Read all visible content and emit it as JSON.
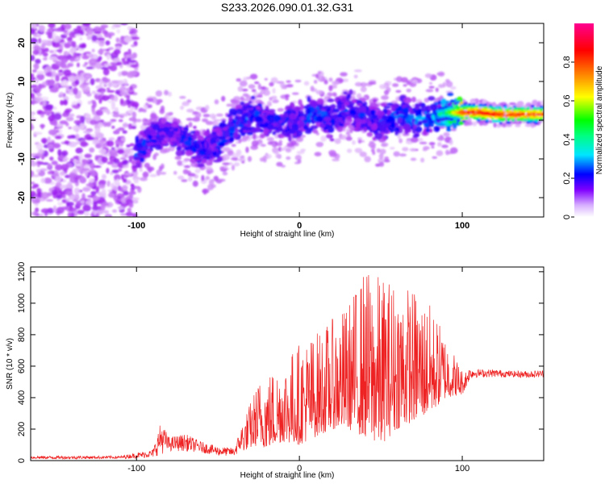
{
  "figure_title": "S233.2026.090.01.32.G31",
  "chart_data": [
    {
      "type": "heatmap",
      "title": "S233.2026.090.01.32.G31",
      "xlabel": "Height of straight line (km)",
      "ylabel": "Frequency (Hz)",
      "xlim": [
        -165,
        150
      ],
      "ylim": [
        -25,
        25
      ],
      "x_ticks": [
        -100,
        0,
        100
      ],
      "y_ticks": [
        -20,
        -10,
        0,
        10,
        20
      ],
      "colorbar": {
        "label": "Normalized spectral amplitude",
        "range": [
          0,
          1
        ],
        "ticks": [
          0,
          0.2,
          0.4,
          0.6,
          0.8
        ],
        "colormap": [
          "#ffffff",
          "#a020f0",
          "#0000ff",
          "#00e5ff",
          "#00ff00",
          "#ffff00",
          "#ff8000",
          "#ff0000",
          "#ff0080"
        ]
      },
      "ridge": {
        "x": [
          -100,
          -90,
          -80,
          -70,
          -60,
          -50,
          -40,
          -30,
          -20,
          -10,
          0,
          10,
          20,
          30,
          40,
          50,
          60,
          70,
          80,
          90,
          100,
          110,
          120,
          130,
          140,
          150
        ],
        "center_hz": [
          -8,
          -4,
          -3,
          -5,
          -8,
          -6,
          -1,
          1,
          0,
          -1,
          0,
          2,
          0,
          3,
          1,
          -1,
          1,
          0,
          1,
          2,
          2,
          2,
          1.5,
          1.5,
          1.5,
          1.5
        ],
        "peak_amplitude": [
          0.35,
          0.3,
          0.25,
          0.3,
          0.3,
          0.3,
          0.35,
          0.35,
          0.3,
          0.3,
          0.3,
          0.35,
          0.3,
          0.3,
          0.3,
          0.3,
          0.35,
          0.35,
          0.4,
          0.5,
          0.85,
          0.9,
          0.9,
          0.85,
          0.85,
          0.8
        ]
      },
      "noise_region_x": [
        -165,
        -100
      ]
    },
    {
      "type": "line",
      "xlabel": "Height of straight line (km)",
      "ylabel": "SNR (10 * v/v)",
      "xlim": [
        -165,
        150
      ],
      "ylim": [
        0,
        1230
      ],
      "x_ticks": [
        -100,
        0,
        100
      ],
      "y_ticks": [
        0,
        200,
        400,
        600,
        800,
        1000,
        1200
      ],
      "series": [
        {
          "color": "#ee2222",
          "x": [
            -165,
            -140,
            -110,
            -100,
            -90,
            -85,
            -80,
            -70,
            -60,
            -50,
            -40,
            -35,
            -30,
            -25,
            -20,
            -10,
            0,
            10,
            20,
            30,
            40,
            50,
            60,
            70,
            80,
            90,
            100,
            105,
            110,
            120,
            130,
            140,
            150
          ],
          "envelope_low": [
            10,
            10,
            12,
            15,
            20,
            40,
            60,
            60,
            50,
            30,
            30,
            60,
            80,
            100,
            80,
            120,
            100,
            150,
            200,
            200,
            150,
            100,
            200,
            250,
            300,
            400,
            420,
            520,
            530,
            530,
            530,
            525,
            530
          ],
          "envelope_high": [
            30,
            30,
            30,
            50,
            70,
            250,
            150,
            170,
            120,
            90,
            80,
            240,
            380,
            520,
            560,
            640,
            760,
            820,
            900,
            1000,
            1230,
            1180,
            1160,
            1100,
            1000,
            800,
            580,
            590,
            580,
            580,
            570,
            570,
            575
          ]
        }
      ]
    }
  ]
}
